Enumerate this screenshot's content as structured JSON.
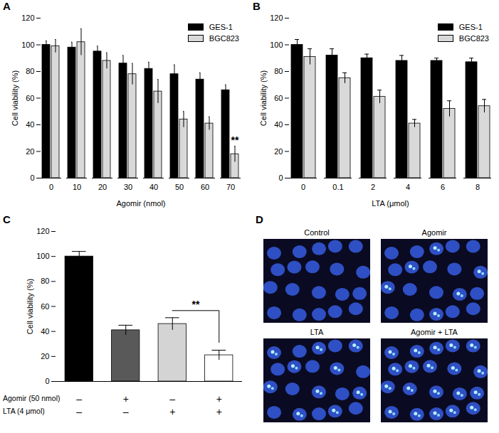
{
  "chart_data": [
    {
      "type": "bar",
      "title": "A",
      "xlabel": "Agomir (nmol)",
      "ylabel": "Cell viability (%)",
      "categories": [
        "0",
        "10",
        "20",
        "30",
        "40",
        "50",
        "60",
        "70"
      ],
      "series": [
        {
          "name": "GES-1",
          "color": "#000000",
          "values": [
            100,
            98,
            95,
            86,
            82,
            78,
            74,
            66
          ],
          "errors": [
            3,
            4,
            4,
            6,
            5,
            7,
            5,
            4
          ]
        },
        {
          "name": "BGC823",
          "color": "#d9d9d9",
          "values": [
            99,
            102,
            88,
            78,
            65,
            44,
            41,
            18
          ],
          "errors": [
            5,
            10,
            6,
            8,
            9,
            6,
            5,
            6
          ]
        }
      ],
      "ylim": [
        0,
        120
      ],
      "yticks": [
        0,
        20,
        40,
        60,
        80,
        100,
        120
      ],
      "grid": false,
      "legend": "top-right",
      "annotations": [
        {
          "text": "**",
          "category": "70",
          "series": "BGC823"
        }
      ]
    },
    {
      "type": "bar",
      "title": "B",
      "xlabel": "LTA (μmol)",
      "ylabel": "Cell viability (%)",
      "categories": [
        "0",
        "0.1",
        "2",
        "4",
        "6",
        "8"
      ],
      "series": [
        {
          "name": "GES-1",
          "color": "#000000",
          "values": [
            100,
            92,
            90,
            88,
            88,
            87
          ],
          "errors": [
            4,
            5,
            3,
            4,
            2,
            3
          ]
        },
        {
          "name": "BGC823",
          "color": "#d9d9d9",
          "values": [
            91,
            75,
            61,
            41,
            52,
            54
          ],
          "errors": [
            6,
            4,
            5,
            3,
            6,
            5
          ]
        }
      ],
      "ylim": [
        0,
        120
      ],
      "yticks": [
        0,
        20,
        40,
        60,
        80,
        100,
        120
      ],
      "grid": false,
      "legend": "top-right"
    },
    {
      "type": "bar",
      "title": "C",
      "ylabel": "Cell viability (%)",
      "categories": [
        null,
        null,
        null,
        null
      ],
      "values": [
        100,
        41,
        46,
        21
      ],
      "errors": [
        4,
        4,
        5,
        4
      ],
      "colors": [
        "#000000",
        "#595959",
        "#d4d4d4",
        "#ffffff"
      ],
      "ylim": [
        0,
        120
      ],
      "yticks": [
        0,
        20,
        40,
        60,
        80,
        100,
        120
      ],
      "grid": false,
      "condition_rows": [
        {
          "label": "Agomir (50 nmol)",
          "marks": [
            "–",
            "+",
            "–",
            "+"
          ]
        },
        {
          "label": "LTA (4 μmol)",
          "marks": [
            "–",
            "–",
            "+",
            "+"
          ]
        }
      ],
      "annotations": [
        {
          "text": "**",
          "between": [
            2,
            3
          ]
        }
      ]
    }
  ],
  "image_panel": {
    "title": "D",
    "captions": [
      "Control",
      "Agomir",
      "LTA",
      "Agomir + LTA"
    ]
  }
}
